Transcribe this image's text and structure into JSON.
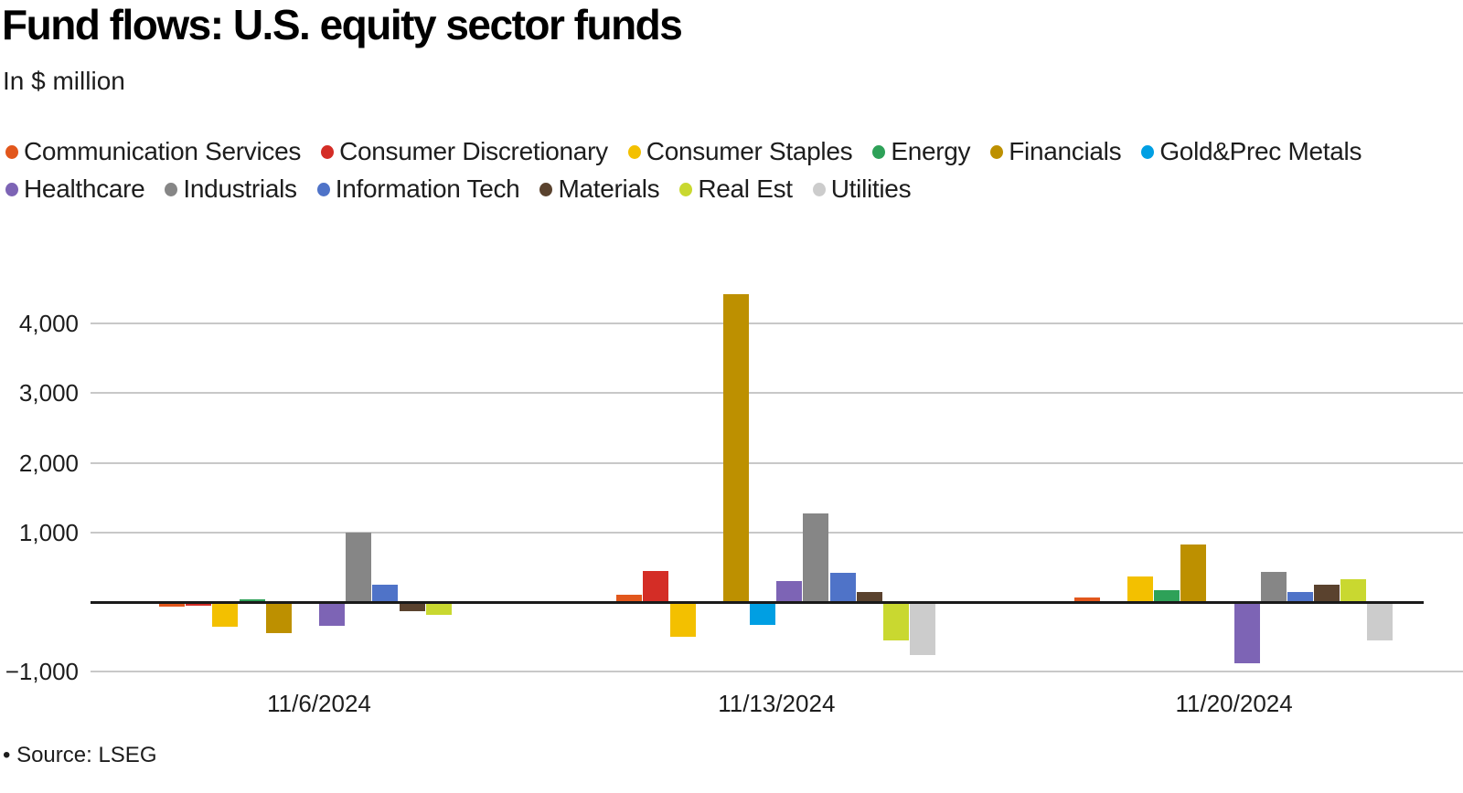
{
  "header": {
    "title": "Fund flows: U.S. equity sector funds",
    "subtitle": "In $ million"
  },
  "footer": {
    "source": "• Source: LSEG"
  },
  "chart_data": {
    "type": "bar",
    "title": "Fund flows: U.S. equity sector funds",
    "subtitle": "In $ million",
    "xlabel": "",
    "ylabel": "In $ million",
    "categories": [
      "11/6/2024",
      "11/13/2024",
      "11/20/2024"
    ],
    "series": [
      {
        "name": "Communication Services",
        "color": "#e2571c",
        "values": [
          -70,
          110,
          70
        ]
      },
      {
        "name": "Consumer Discretionary",
        "color": "#d42d26",
        "values": [
          -50,
          440,
          0
        ]
      },
      {
        "name": "Consumer Staples",
        "color": "#f3c000",
        "values": [
          -360,
          -495,
          365
        ]
      },
      {
        "name": "Energy",
        "color": "#2ea158",
        "values": [
          45,
          0,
          165
        ]
      },
      {
        "name": "Financials",
        "color": "#bd9000",
        "values": [
          -440,
          4420,
          830
        ]
      },
      {
        "name": "Gold&Prec Metals",
        "color": "#009fe3",
        "values": [
          0,
          -330,
          0
        ]
      },
      {
        "name": "Healthcare",
        "color": "#7d64b5",
        "values": [
          -340,
          305,
          -885
        ]
      },
      {
        "name": "Industrials",
        "color": "#868686",
        "values": [
          1000,
          1270,
          430
        ]
      },
      {
        "name": "Information Tech",
        "color": "#4f73c8",
        "values": [
          255,
          425,
          140
        ]
      },
      {
        "name": "Materials",
        "color": "#5a422e",
        "values": [
          -130,
          150,
          245
        ]
      },
      {
        "name": "Real Est",
        "color": "#c9d830",
        "values": [
          -190,
          -555,
          330
        ]
      },
      {
        "name": "Utilities",
        "color": "#cccccc",
        "values": [
          0,
          -760,
          -555
        ]
      }
    ],
    "yticks": [
      {
        "value": 4000,
        "label": "4,000"
      },
      {
        "value": 3000,
        "label": "3,000"
      },
      {
        "value": 2000,
        "label": "2,000"
      },
      {
        "value": 1000,
        "label": "1,000"
      },
      {
        "value": -1000,
        "label": "−1,000"
      }
    ],
    "ylim": [
      -1100,
      4600
    ],
    "grid": true,
    "zero_line": true,
    "legend_position": "top"
  }
}
